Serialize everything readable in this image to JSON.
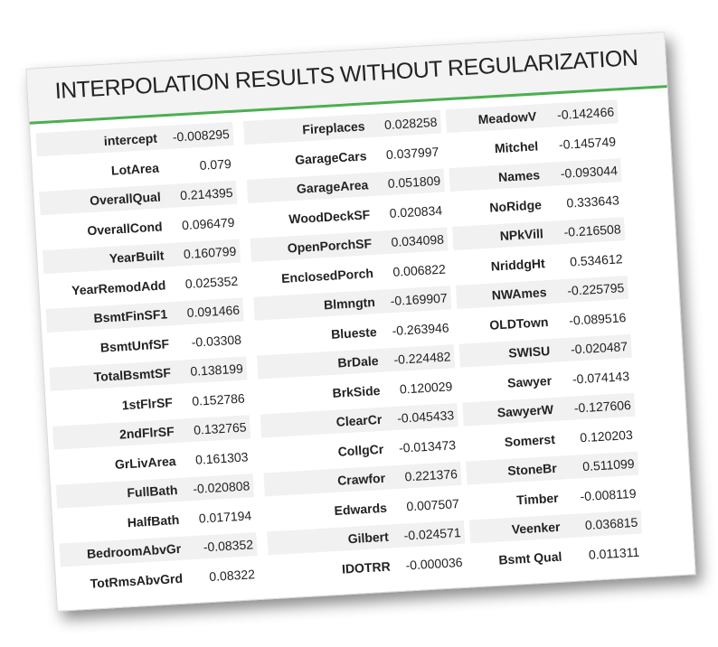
{
  "title": "INTERPOLATION RESULTS WITHOUT REGULARIZATION",
  "accent_color": "#4caf50",
  "columns": [
    [
      {
        "name": "intercept",
        "value": "-0.008295"
      },
      {
        "name": "LotArea",
        "value": "0.079"
      },
      {
        "name": "OverallQual",
        "value": "0.214395"
      },
      {
        "name": "OverallCond",
        "value": "0.096479"
      },
      {
        "name": "YearBuilt",
        "value": "0.160799"
      },
      {
        "name": "YearRemodAdd",
        "value": "0.025352"
      },
      {
        "name": "BsmtFinSF1",
        "value": "0.091466"
      },
      {
        "name": "BsmtUnfSF",
        "value": "-0.03308"
      },
      {
        "name": "TotalBsmtSF",
        "value": "0.138199"
      },
      {
        "name": "1stFlrSF",
        "value": "0.152786"
      },
      {
        "name": "2ndFlrSF",
        "value": "0.132765"
      },
      {
        "name": "GrLivArea",
        "value": "0.161303"
      },
      {
        "name": "FullBath",
        "value": "-0.020808"
      },
      {
        "name": "HalfBath",
        "value": "0.017194"
      },
      {
        "name": "BedroomAbvGr",
        "value": "-0.08352"
      },
      {
        "name": "TotRmsAbvGrd",
        "value": "0.08322"
      }
    ],
    [
      {
        "name": "Fireplaces",
        "value": "0.028258"
      },
      {
        "name": "GarageCars",
        "value": "0.037997"
      },
      {
        "name": "GarageArea",
        "value": "0.051809"
      },
      {
        "name": "WoodDeckSF",
        "value": "0.020834"
      },
      {
        "name": "OpenPorchSF",
        "value": "0.034098"
      },
      {
        "name": "EnclosedPorch",
        "value": "0.006822"
      },
      {
        "name": "Blmngtn",
        "value": "-0.169907"
      },
      {
        "name": "Blueste",
        "value": "-0.263946"
      },
      {
        "name": "BrDale",
        "value": "-0.224482"
      },
      {
        "name": "BrkSide",
        "value": "0.120029"
      },
      {
        "name": "ClearCr",
        "value": "-0.045433"
      },
      {
        "name": "CollgCr",
        "value": "-0.013473"
      },
      {
        "name": "Crawfor",
        "value": "0.221376"
      },
      {
        "name": "Edwards",
        "value": "0.007507"
      },
      {
        "name": "Gilbert",
        "value": "-0.024571"
      },
      {
        "name": "IDOTRR",
        "value": "-0.000036"
      }
    ],
    [
      {
        "name": "MeadowV",
        "value": "-0.142466"
      },
      {
        "name": "Mitchel",
        "value": "-0.145749"
      },
      {
        "name": "Names",
        "value": "-0.093044"
      },
      {
        "name": "NoRidge",
        "value": "0.333643"
      },
      {
        "name": "NPkVill",
        "value": "-0.216508"
      },
      {
        "name": "NriddgHt",
        "value": "0.534612"
      },
      {
        "name": "NWAmes",
        "value": "-0.225795"
      },
      {
        "name": "OLDTown",
        "value": "-0.089516"
      },
      {
        "name": "SWISU",
        "value": "-0.020487"
      },
      {
        "name": "Sawyer",
        "value": "-0.074143"
      },
      {
        "name": "SawyerW",
        "value": "-0.127606"
      },
      {
        "name": "Somerst",
        "value": "0.120203"
      },
      {
        "name": "StoneBr",
        "value": "0.511099"
      },
      {
        "name": "Timber",
        "value": "-0.008119"
      },
      {
        "name": "Veenker",
        "value": "0.036815"
      },
      {
        "name": "Bsmt Qual",
        "value": "0.011311"
      }
    ]
  ]
}
